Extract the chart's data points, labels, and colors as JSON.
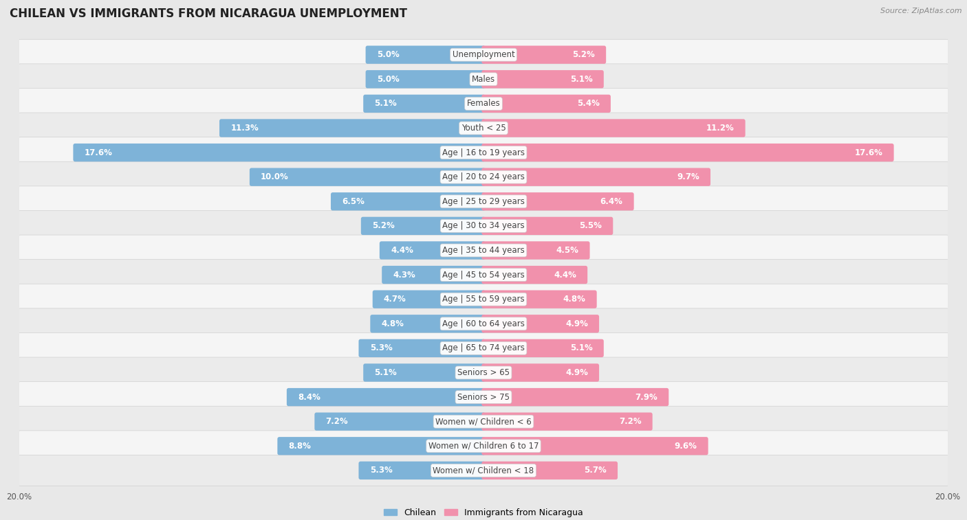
{
  "title": "Chilean vs Immigrants from Nicaragua Unemployment",
  "source": "Source: ZipAtlas.com",
  "categories": [
    "Unemployment",
    "Males",
    "Females",
    "Youth < 25",
    "Age | 16 to 19 years",
    "Age | 20 to 24 years",
    "Age | 25 to 29 years",
    "Age | 30 to 34 years",
    "Age | 35 to 44 years",
    "Age | 45 to 54 years",
    "Age | 55 to 59 years",
    "Age | 60 to 64 years",
    "Age | 65 to 74 years",
    "Seniors > 65",
    "Seniors > 75",
    "Women w/ Children < 6",
    "Women w/ Children 6 to 17",
    "Women w/ Children < 18"
  ],
  "chilean": [
    5.0,
    5.0,
    5.1,
    11.3,
    17.6,
    10.0,
    6.5,
    5.2,
    4.4,
    4.3,
    4.7,
    4.8,
    5.3,
    5.1,
    8.4,
    7.2,
    8.8,
    5.3
  ],
  "nicaragua": [
    5.2,
    5.1,
    5.4,
    11.2,
    17.6,
    9.7,
    6.4,
    5.5,
    4.5,
    4.4,
    4.8,
    4.9,
    5.1,
    4.9,
    7.9,
    7.2,
    9.6,
    5.7
  ],
  "chilean_color": "#7eb3d8",
  "nicaragua_color": "#f191ac",
  "row_color_odd": "#f5f5f5",
  "row_color_even": "#ebebeb",
  "bg_color": "#e8e8e8",
  "label_inside_color": "#ffffff",
  "label_outside_color": "#666666",
  "xlim": 20.0,
  "bar_height": 0.58,
  "title_fontsize": 12,
  "value_fontsize": 8.5,
  "category_fontsize": 8.5,
  "legend_fontsize": 9,
  "source_fontsize": 8
}
